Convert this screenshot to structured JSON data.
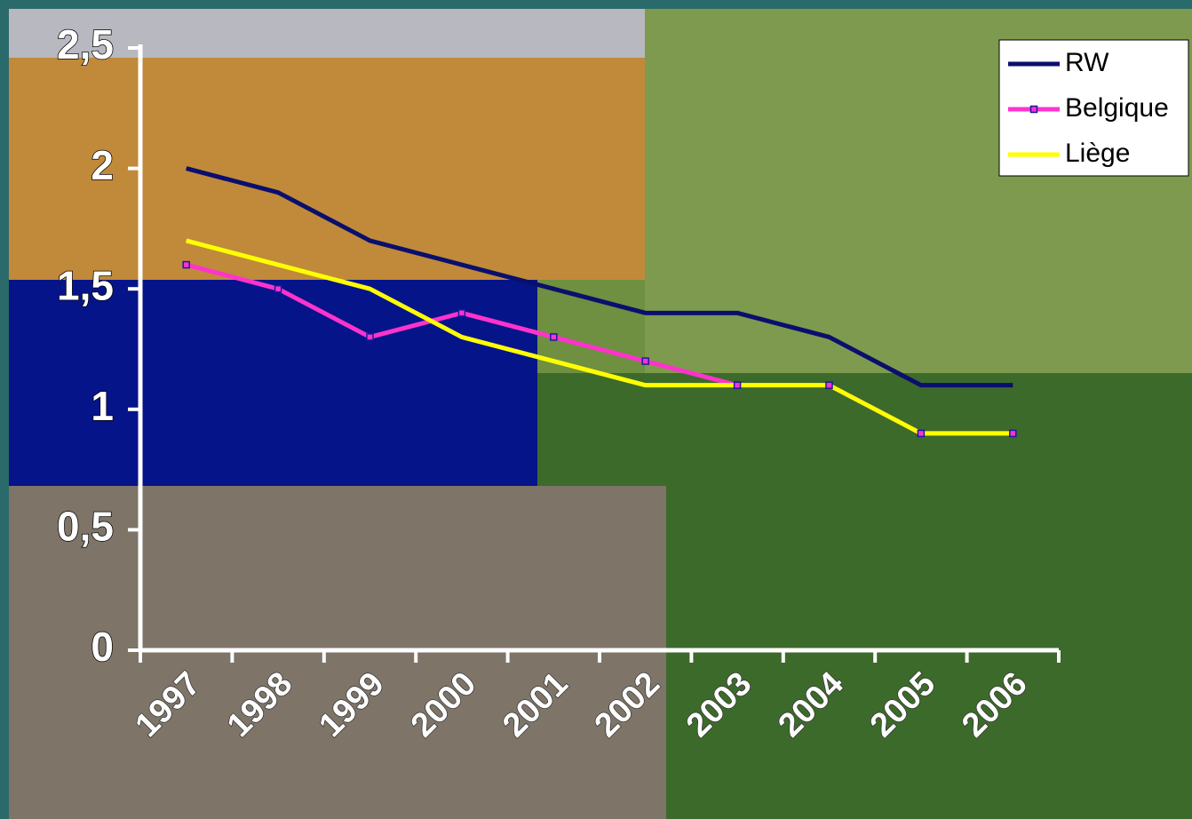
{
  "chart_data": {
    "type": "line",
    "categories": [
      "1997",
      "1998",
      "1999",
      "2000",
      "2001",
      "2002",
      "2003",
      "2004",
      "2005",
      "2006"
    ],
    "series": [
      {
        "name": "RW",
        "color": "#0a0f6e",
        "marker": false,
        "values": [
          2.0,
          1.9,
          1.7,
          1.6,
          1.5,
          1.4,
          1.4,
          1.3,
          1.1,
          1.1
        ]
      },
      {
        "name": "Belgique",
        "color": "#ff33cc",
        "marker": true,
        "values": [
          1.6,
          1.5,
          1.3,
          1.4,
          1.3,
          1.2,
          1.1,
          1.1,
          0.9,
          0.9
        ]
      },
      {
        "name": "Liège",
        "color": "#ffff00",
        "marker": false,
        "values": [
          1.7,
          1.6,
          1.5,
          1.3,
          1.2,
          1.1,
          1.1,
          1.1,
          0.9,
          0.9
        ]
      }
    ],
    "ylim": [
      0,
      2.5
    ],
    "yticks": [
      0,
      {
        "value": 0.5,
        "label": "0,5"
      },
      1,
      {
        "value": 1.5,
        "label": "1,5"
      },
      2,
      {
        "value": 2.5,
        "label": "2,5"
      }
    ],
    "legend": "top-right"
  }
}
